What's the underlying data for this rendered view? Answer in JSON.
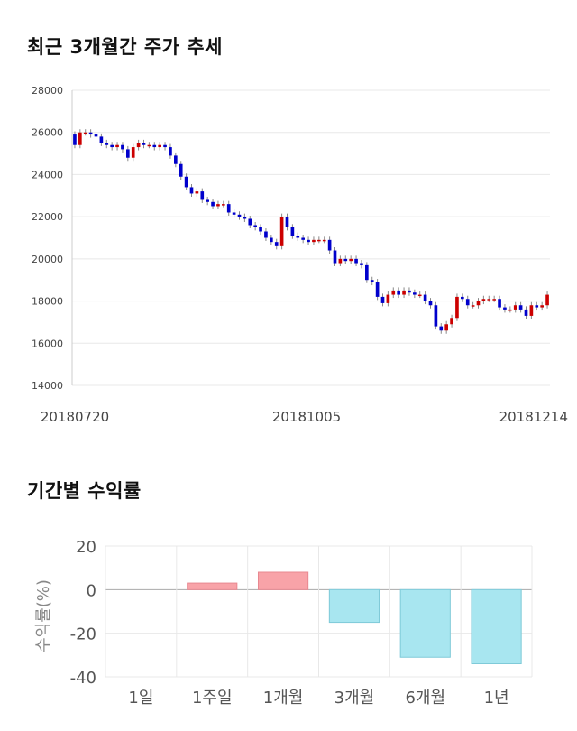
{
  "titles": {
    "price_trend": "최근 3개월간 주가 추세",
    "returns": "기간별 수익률"
  },
  "colors": {
    "up": "#cc0000",
    "down": "#0000cc",
    "positive_bar": "#f8a3a8",
    "negative_bar": "#a8e6f0",
    "grid": "#e8e8e8"
  },
  "chart_data": [
    {
      "type": "candlestick",
      "title": "최근 3개월간 주가 추세",
      "ylim": [
        14000,
        28000
      ],
      "yticks": [
        14000,
        16000,
        18000,
        20000,
        22000,
        24000,
        26000,
        28000
      ],
      "xtick_labels": [
        "20180720",
        "20181005",
        "20181214"
      ],
      "close_series": [
        25400,
        26000,
        26000,
        25900,
        25800,
        25500,
        25400,
        25300,
        25400,
        25200,
        24800,
        25300,
        25500,
        25400,
        25400,
        25300,
        25400,
        25300,
        24900,
        24500,
        23900,
        23400,
        23100,
        23200,
        22800,
        22700,
        22500,
        22600,
        22600,
        22200,
        22100,
        22000,
        21900,
        21600,
        21500,
        21300,
        21000,
        20800,
        20600,
        22000,
        21500,
        21100,
        21000,
        20900,
        20800,
        20900,
        20900,
        20900,
        20400,
        19800,
        20000,
        19900,
        20000,
        19800,
        19700,
        19000,
        18900,
        18200,
        17900,
        18300,
        18500,
        18300,
        18500,
        18400,
        18300,
        18300,
        18000,
        17800,
        16800,
        16600,
        16900,
        17200,
        18200,
        18100,
        17800,
        17800,
        18000,
        18100,
        18100,
        18100,
        17700,
        17600,
        17600,
        17800,
        17600,
        17300,
        17800,
        17700,
        17800,
        18300
      ]
    },
    {
      "type": "bar",
      "title": "기간별 수익률",
      "ylabel": "수익률(%)",
      "ylim": [
        -40,
        20
      ],
      "yticks": [
        20,
        0,
        -20,
        -40
      ],
      "categories": [
        "1일",
        "1주일",
        "1개월",
        "3개월",
        "6개월",
        "1년"
      ],
      "values": [
        0,
        3,
        8,
        -15,
        -31,
        -34
      ]
    }
  ]
}
